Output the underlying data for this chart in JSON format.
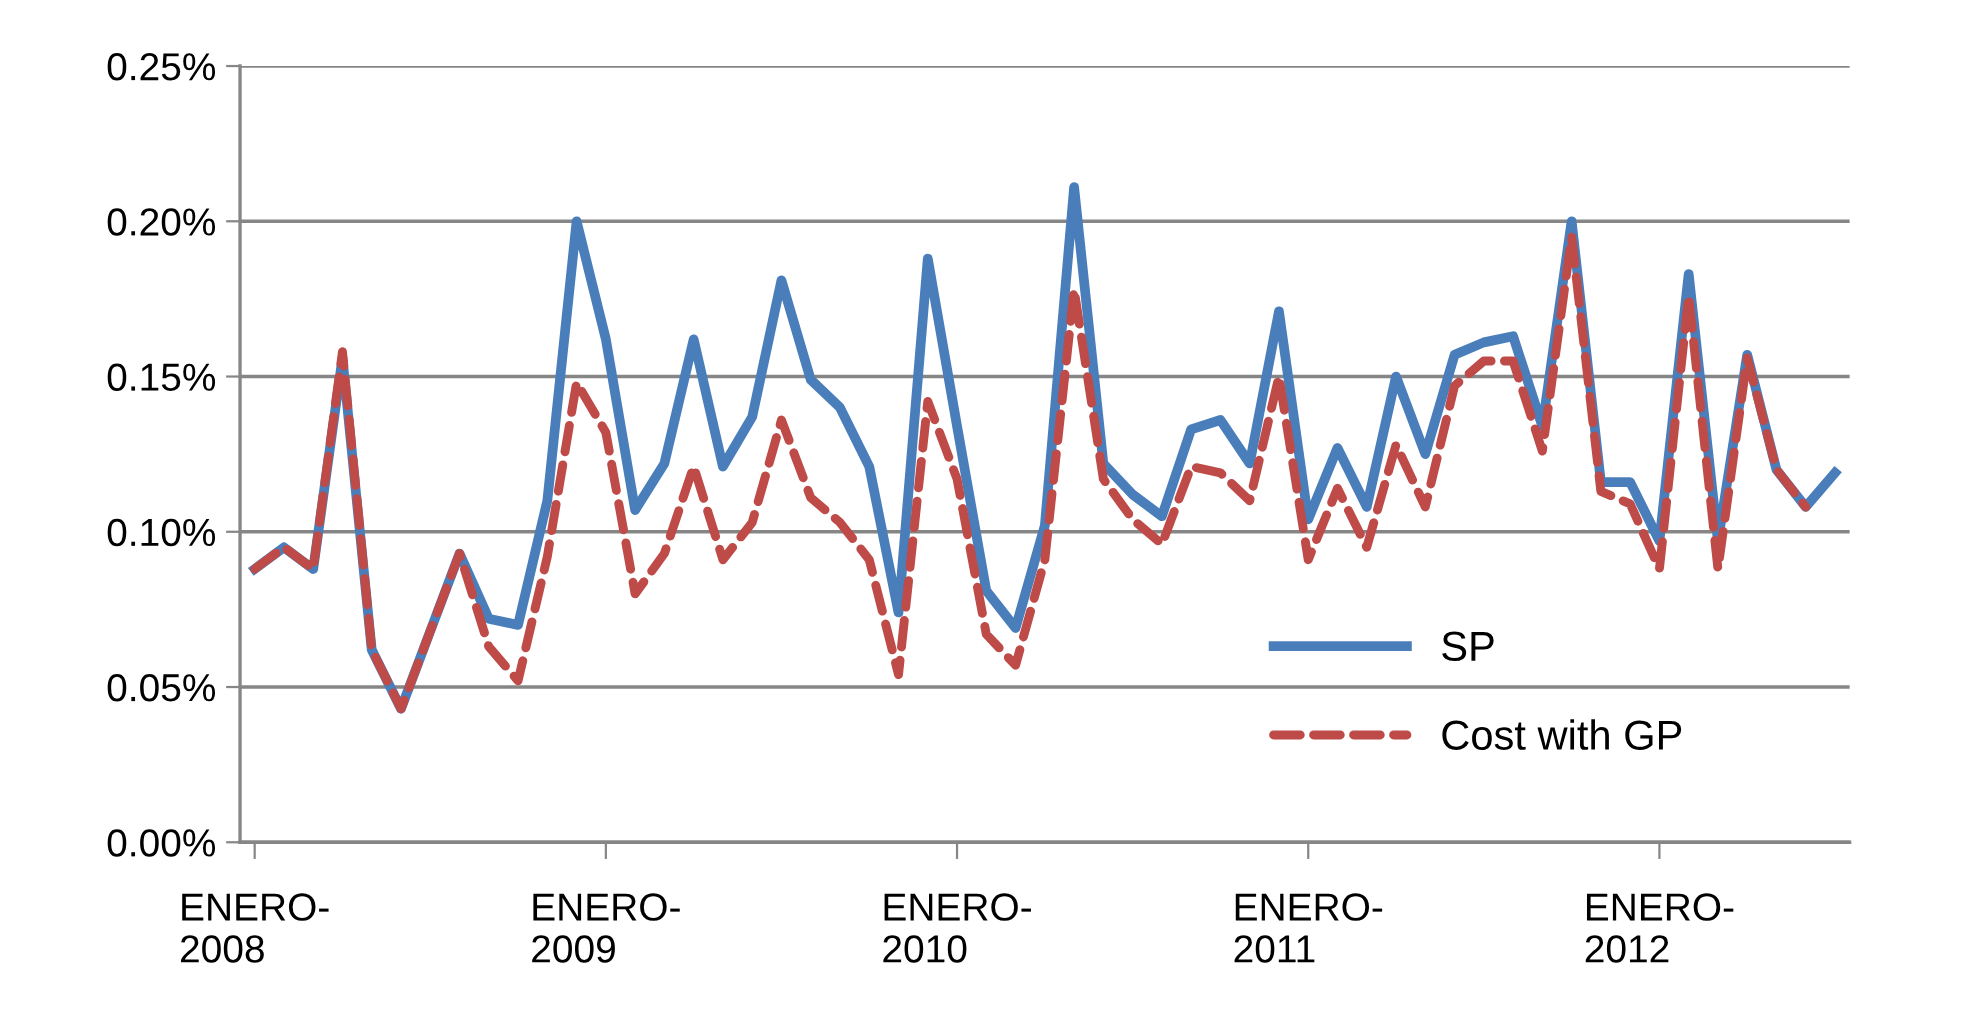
{
  "chart_data": {
    "type": "line",
    "categories": [
      "ENERO-\n2008",
      null,
      null,
      null,
      null,
      null,
      null,
      null,
      null,
      null,
      null,
      null,
      "ENERO-\n2009",
      null,
      null,
      null,
      null,
      null,
      null,
      null,
      null,
      null,
      null,
      null,
      "ENERO-\n2010",
      null,
      null,
      null,
      null,
      null,
      null,
      null,
      null,
      null,
      null,
      null,
      "ENERO-\n2011",
      null,
      null,
      null,
      null,
      null,
      null,
      null,
      null,
      null,
      null,
      null,
      "ENERO-\n2012",
      null,
      null,
      null,
      null,
      null,
      null
    ],
    "series": [
      {
        "name": "SP",
        "color": "#4a7ebb",
        "line_style": "solid",
        "values": [
          0.088,
          0.095,
          0.088,
          0.156,
          0.062,
          0.043,
          0.068,
          0.093,
          0.072,
          0.07,
          0.11,
          0.2,
          0.162,
          0.107,
          0.122,
          0.162,
          0.121,
          0.137,
          0.181,
          0.149,
          0.14,
          0.121,
          0.074,
          0.188,
          0.134,
          0.081,
          0.069,
          0.102,
          0.211,
          0.122,
          0.112,
          0.105,
          0.133,
          0.136,
          0.122,
          0.171,
          0.104,
          0.127,
          0.108,
          0.15,
          0.125,
          0.157,
          0.161,
          0.163,
          0.134,
          0.2,
          0.116,
          0.116,
          0.097,
          0.183,
          0.097,
          0.157,
          0.12,
          0.108,
          0.119
        ]
      },
      {
        "name": "Cost with GP",
        "color": "#be4b48",
        "line_style": "dashed",
        "values": [
          0.088,
          0.095,
          0.088,
          0.158,
          0.062,
          0.043,
          0.068,
          0.093,
          0.063,
          0.052,
          0.092,
          0.148,
          0.132,
          0.08,
          0.093,
          0.121,
          0.091,
          0.103,
          0.136,
          0.111,
          0.103,
          0.091,
          0.054,
          0.142,
          0.117,
          0.067,
          0.057,
          0.091,
          0.178,
          0.117,
          0.104,
          0.096,
          0.121,
          0.119,
          0.11,
          0.15,
          0.091,
          0.114,
          0.095,
          0.128,
          0.108,
          0.147,
          0.155,
          0.155,
          0.126,
          0.195,
          0.113,
          0.109,
          0.088,
          0.176,
          0.088,
          0.156,
          0.12,
          0.108,
          null
        ]
      }
    ],
    "ylim": [
      0,
      0.25
    ],
    "yticks": [
      {
        "value": 0,
        "label": "0.00%"
      },
      {
        "value": 0.05,
        "label": "0.05%"
      },
      {
        "value": 0.1,
        "label": "0.10%"
      },
      {
        "value": 0.15,
        "label": "0.15%"
      },
      {
        "value": 0.2,
        "label": "0.20%"
      },
      {
        "value": 0.25,
        "label": "0.25%"
      }
    ],
    "grid": "y",
    "legend": "bottom right",
    "marker": "none"
  }
}
